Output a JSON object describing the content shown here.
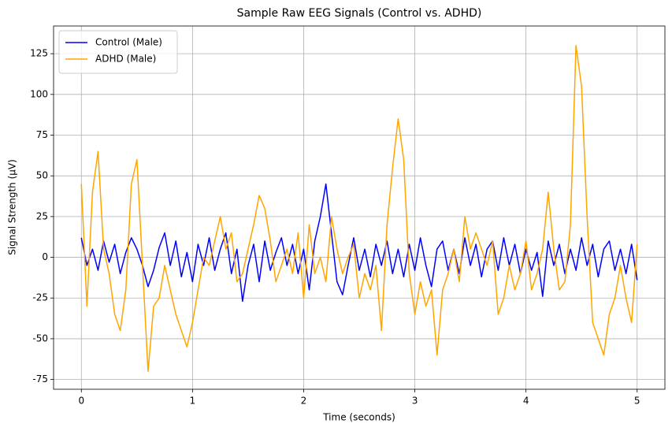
{
  "chart_data": {
    "type": "line",
    "title": "Sample Raw EEG Signals (Control vs. ADHD)",
    "x_label": "Time (seconds)",
    "y_label": "Signal Strength (µV)",
    "x": [
      0,
      0.05,
      0.1,
      0.15,
      0.2,
      0.25,
      0.3,
      0.35,
      0.4,
      0.45,
      0.5,
      0.55,
      0.6,
      0.65,
      0.7,
      0.75,
      0.8,
      0.85,
      0.9,
      0.95,
      1,
      1.05,
      1.1,
      1.15,
      1.2,
      1.25,
      1.3,
      1.35,
      1.4,
      1.45,
      1.5,
      1.55,
      1.6,
      1.65,
      1.7,
      1.75,
      1.8,
      1.85,
      1.9,
      1.95,
      2,
      2.05,
      2.1,
      2.15,
      2.2,
      2.25,
      2.3,
      2.35,
      2.4,
      2.45,
      2.5,
      2.55,
      2.6,
      2.65,
      2.7,
      2.75,
      2.8,
      2.85,
      2.9,
      2.95,
      3,
      3.05,
      3.1,
      3.15,
      3.2,
      3.25,
      3.3,
      3.35,
      3.4,
      3.45,
      3.5,
      3.55,
      3.6,
      3.65,
      3.7,
      3.75,
      3.8,
      3.85,
      3.9,
      3.95,
      4,
      4.05,
      4.1,
      4.15,
      4.2,
      4.25,
      4.3,
      4.35,
      4.4,
      4.45,
      4.5,
      4.55,
      4.6,
      4.65,
      4.7,
      4.75,
      4.8,
      4.85,
      4.9,
      4.95,
      5
    ],
    "series": [
      {
        "name": "Control (Male)",
        "color": "#0000ff",
        "values": [
          12,
          -5,
          5,
          -8,
          10,
          -3,
          8,
          -10,
          3,
          12,
          5,
          -5,
          -18,
          -8,
          6,
          15,
          -5,
          10,
          -12,
          3,
          -15,
          8,
          -5,
          12,
          -8,
          5,
          15,
          -10,
          5,
          -27,
          -5,
          8,
          -15,
          10,
          -8,
          3,
          12,
          -5,
          8,
          -10,
          5,
          -20,
          10,
          25,
          45,
          15,
          -15,
          -23,
          -5,
          12,
          -8,
          5,
          -12,
          8,
          -5,
          10,
          -10,
          5,
          -12,
          8,
          -8,
          12,
          -5,
          -18,
          5,
          10,
          -8,
          5,
          -10,
          12,
          -5,
          8,
          -12,
          5,
          10,
          -8,
          12,
          -5,
          8,
          -10,
          5,
          -8,
          3,
          -24,
          10,
          -5,
          8,
          -10,
          5,
          -8,
          12,
          -5,
          8,
          -12,
          5,
          10,
          -8,
          5,
          -10,
          8,
          -14
        ]
      },
      {
        "name": "ADHD (Male)",
        "color": "#ffa500",
        "values": [
          45,
          -30,
          40,
          65,
          5,
          -10,
          -35,
          -45,
          -20,
          45,
          60,
          -5,
          -70,
          -30,
          -25,
          -5,
          -20,
          -35,
          -45,
          -55,
          -40,
          -20,
          0,
          -5,
          10,
          25,
          5,
          15,
          -15,
          -10,
          5,
          20,
          38,
          30,
          10,
          -15,
          -5,
          5,
          -10,
          15,
          -25,
          20,
          -10,
          0,
          -15,
          25,
          5,
          -10,
          0,
          8,
          -25,
          -10,
          -20,
          -5,
          -45,
          20,
          55,
          85,
          60,
          -10,
          -35,
          -15,
          -30,
          -20,
          -60,
          -20,
          -10,
          5,
          -15,
          25,
          5,
          15,
          5,
          -5,
          10,
          -35,
          -25,
          -5,
          -20,
          -10,
          10,
          -20,
          -10,
          5,
          40,
          5,
          -20,
          -15,
          20,
          130,
          105,
          25,
          -40,
          -50,
          -60,
          -35,
          -25,
          -5,
          -25,
          -40,
          8
        ]
      }
    ],
    "xlim": [
      -0.25,
      5.25
    ],
    "ylim": [
      -81,
      142
    ],
    "xticks": [
      0,
      1,
      2,
      3,
      4,
      5
    ],
    "yticks": [
      -75,
      -50,
      -25,
      0,
      25,
      50,
      75,
      100,
      125
    ],
    "grid": true,
    "legend": "upper-left"
  }
}
